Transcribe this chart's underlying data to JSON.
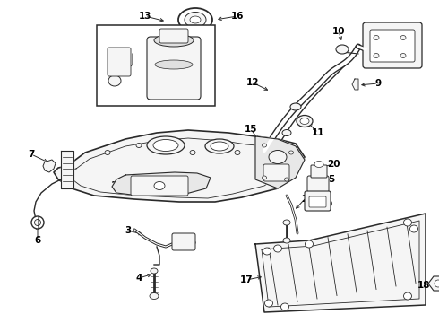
{
  "bg_color": "#ffffff",
  "lc": "#2a2a2a",
  "label_color": "#000000",
  "fig_width": 4.9,
  "fig_height": 3.6,
  "dpi": 100
}
